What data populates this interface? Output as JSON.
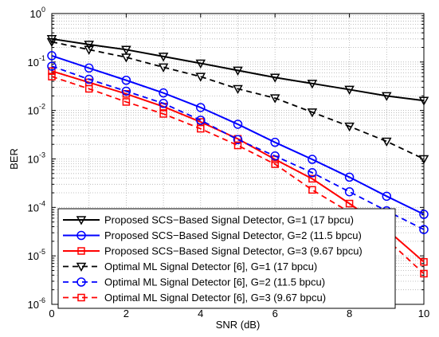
{
  "chart_data": {
    "type": "line",
    "xlabel": "SNR (dB)",
    "ylabel": "BER",
    "xlim": [
      0,
      10
    ],
    "ylim": [
      1e-06,
      1
    ],
    "y_scale": "log",
    "grid": true,
    "legend_position": "bottom-left",
    "x_ticks": [
      "0",
      "2",
      "4",
      "6",
      "8",
      "10"
    ],
    "y_ticks": [
      {
        "base": "10",
        "exp": "0"
      },
      {
        "base": "10",
        "exp": "-1"
      },
      {
        "base": "10",
        "exp": "-2"
      },
      {
        "base": "10",
        "exp": "-3"
      },
      {
        "base": "10",
        "exp": "-4"
      },
      {
        "base": "10",
        "exp": "-5"
      },
      {
        "base": "10",
        "exp": "-6"
      }
    ],
    "x": [
      0,
      1,
      2,
      3,
      4,
      5,
      6,
      7,
      8,
      9,
      10
    ],
    "series": [
      {
        "name": "Proposed SCS−Based Signal Detector, G=1 (17 bpcu)",
        "color": "#000000",
        "marker": "triangle-down",
        "dash": "solid",
        "values": [
          0.3,
          0.23,
          0.18,
          0.13,
          0.094,
          0.067,
          0.048,
          0.036,
          0.027,
          0.02,
          0.016
        ]
      },
      {
        "name": "Proposed SCS−Based Signal Detector, G=2 (11.5 bpcu)",
        "color": "#0000ff",
        "marker": "circle",
        "dash": "solid",
        "values": [
          0.135,
          0.075,
          0.042,
          0.023,
          0.0115,
          0.0052,
          0.0022,
          0.00098,
          0.00042,
          0.00017,
          7.2e-05
        ]
      },
      {
        "name": "Proposed SCS−Based Signal Detector, G=3 (9.67 bpcu)",
        "color": "#ff0000",
        "marker": "square",
        "dash": "solid",
        "values": [
          0.065,
          0.038,
          0.022,
          0.012,
          0.0058,
          0.0026,
          0.00098,
          0.00039,
          0.00012,
          3.5e-05,
          7.5e-06
        ]
      },
      {
        "name": "Optimal ML Signal Detector [6], G=1 (17 bpcu)",
        "color": "#000000",
        "marker": "triangle-down",
        "dash": "dashed",
        "values": [
          0.26,
          0.18,
          0.125,
          0.078,
          0.05,
          0.028,
          0.018,
          0.0092,
          0.0047,
          0.0023,
          0.001
        ]
      },
      {
        "name": "Optimal ML Signal Detector [6], G=2 (11.5 bpcu)",
        "color": "#0000ff",
        "marker": "circle",
        "dash": "dashed",
        "values": [
          0.082,
          0.044,
          0.025,
          0.014,
          0.0063,
          0.0025,
          0.00115,
          0.00052,
          0.00021,
          8.5e-05,
          3.5e-05
        ]
      },
      {
        "name": "Optimal ML Signal Detector [6], G=3 (9.67 bpcu)",
        "color": "#ff0000",
        "marker": "square",
        "dash": "dashed",
        "values": [
          0.05,
          0.028,
          0.015,
          0.0085,
          0.0042,
          0.0019,
          0.00078,
          0.00023,
          8e-05,
          2.2e-05,
          4.3e-06
        ]
      }
    ]
  }
}
